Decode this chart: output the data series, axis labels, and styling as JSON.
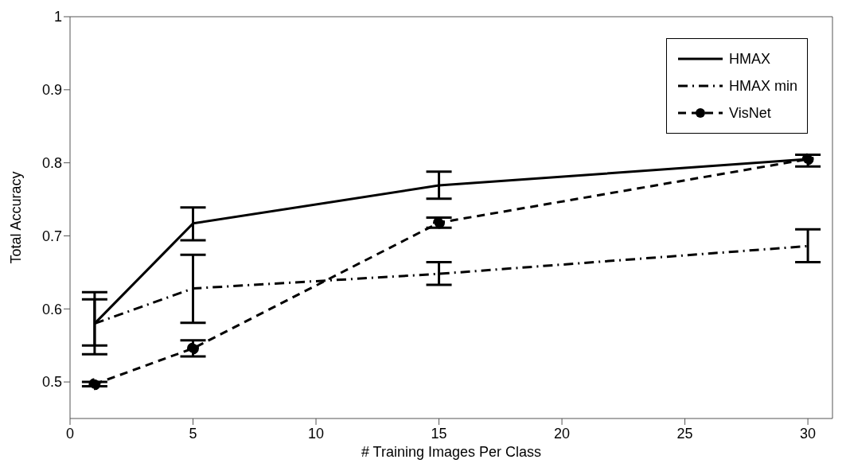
{
  "chart_data": {
    "type": "line",
    "xlabel": "# Training Images Per Class",
    "ylabel": "Total Accuracy",
    "x": [
      1,
      5,
      15,
      30
    ],
    "series": [
      {
        "name": "HMAX",
        "color": "#000000",
        "line_style": "solid",
        "marker": "none",
        "values": [
          0.58,
          0.717,
          0.769,
          0.805
        ],
        "errors": [
          [
            0.538,
            0.623
          ],
          [
            0.694,
            0.739
          ],
          [
            0.751,
            0.788
          ],
          [
            0.795,
            0.811
          ]
        ]
      },
      {
        "name": "HMAX min",
        "color": "#000000",
        "line_style": "dashdot",
        "marker": "none",
        "values": [
          0.58,
          0.628,
          0.648,
          0.686
        ],
        "errors": [
          [
            0.55,
            0.613
          ],
          [
            0.581,
            0.674
          ],
          [
            0.633,
            0.664
          ],
          [
            0.664,
            0.709
          ]
        ]
      },
      {
        "name": "VisNet",
        "color": "#000000",
        "line_style": "dashed",
        "marker": "circle",
        "values": [
          0.497,
          0.546,
          0.718,
          0.805
        ],
        "errors": [
          [
            0.494,
            0.5
          ],
          [
            0.535,
            0.557
          ],
          [
            0.711,
            0.725
          ],
          null
        ]
      }
    ],
    "xlim": [
      0,
      31
    ],
    "xticks": [
      0,
      5,
      10,
      15,
      20,
      25,
      30
    ],
    "ylim": [
      0.45,
      1
    ],
    "yticks": [
      0.5,
      0.6,
      0.7,
      0.8,
      0.9,
      1
    ],
    "legend": "top right"
  }
}
